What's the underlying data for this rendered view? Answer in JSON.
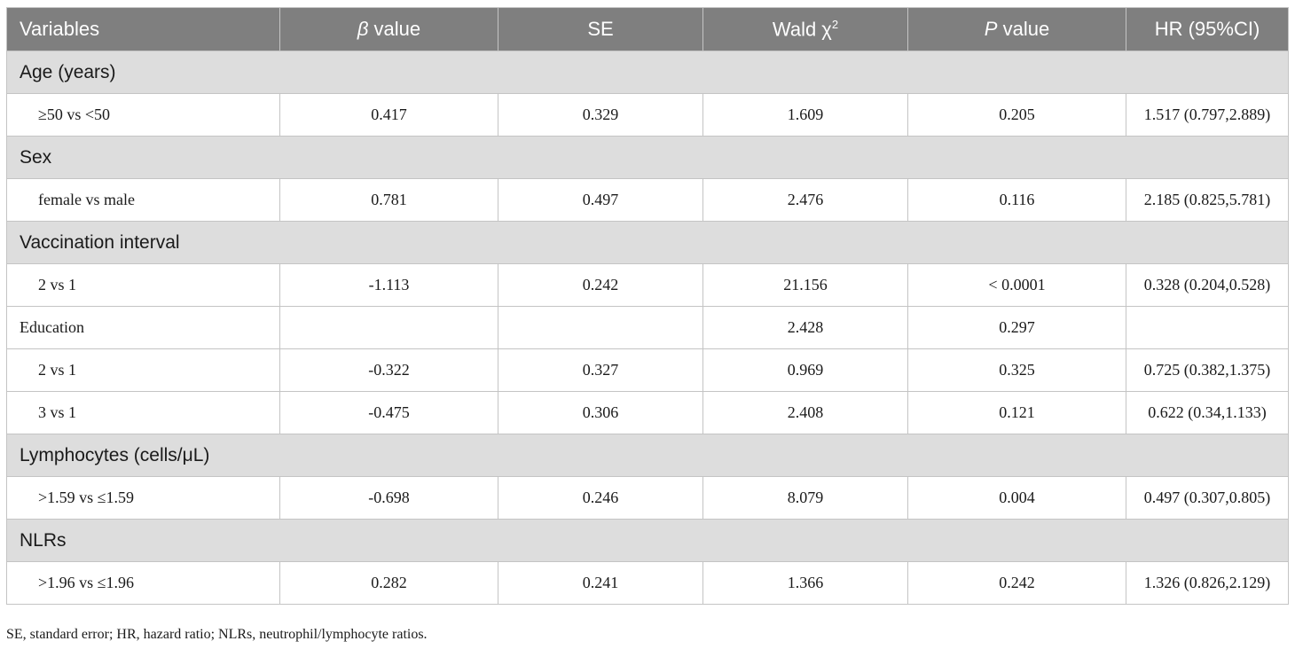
{
  "header": {
    "variables": "Variables",
    "beta_sym": "β",
    "beta_rest": " value",
    "se": "SE",
    "wald": "Wald χ",
    "wald_sup": "2",
    "p_sym": "P",
    "p_rest": " value",
    "hr": "HR (95%CI)"
  },
  "rows": [
    {
      "type": "section",
      "label": "Age (years)"
    },
    {
      "type": "data",
      "label": "≥50 vs <50",
      "beta": "0.417",
      "se": "0.329",
      "wald": "1.609",
      "p": "0.205",
      "hr": "1.517 (0.797,2.889)"
    },
    {
      "type": "section",
      "label": "Sex"
    },
    {
      "type": "data",
      "label": "female vs male",
      "beta": "0.781",
      "se": "0.497",
      "wald": "2.476",
      "p": "0.116",
      "hr": "2.185 (0.825,5.781)"
    },
    {
      "type": "section",
      "label": "Vaccination interval"
    },
    {
      "type": "data",
      "label": "2 vs 1",
      "beta": "-1.113",
      "se": "0.242",
      "wald": "21.156",
      "p": "< 0.0001",
      "hr": "0.328 (0.204,0.528)"
    },
    {
      "type": "data",
      "plain": true,
      "label": "Education",
      "beta": "",
      "se": "",
      "wald": "2.428",
      "p": "0.297",
      "hr": ""
    },
    {
      "type": "data",
      "label": "2 vs 1",
      "beta": "-0.322",
      "se": "0.327",
      "wald": "0.969",
      "p": "0.325",
      "hr": "0.725 (0.382,1.375)"
    },
    {
      "type": "data",
      "label": "3 vs 1",
      "beta": "-0.475",
      "se": "0.306",
      "wald": "2.408",
      "p": "0.121",
      "hr": "0.622 (0.34,1.133)"
    },
    {
      "type": "section",
      "label": "Lymphocytes (cells/μL)"
    },
    {
      "type": "data",
      "label": ">1.59 vs ≤1.59",
      "beta": "-0.698",
      "se": "0.246",
      "wald": "8.079",
      "p": "0.004",
      "hr": "0.497 (0.307,0.805)"
    },
    {
      "type": "section",
      "label": "NLRs"
    },
    {
      "type": "data",
      "label": ">1.96 vs ≤1.96",
      "beta": "0.282",
      "se": "0.241",
      "wald": "1.366",
      "p": "0.242",
      "hr": "1.326 (0.826,2.129)"
    }
  ],
  "footnote": "SE, standard error; HR, hazard ratio; NLRs, neutrophil/lymphocyte ratios."
}
